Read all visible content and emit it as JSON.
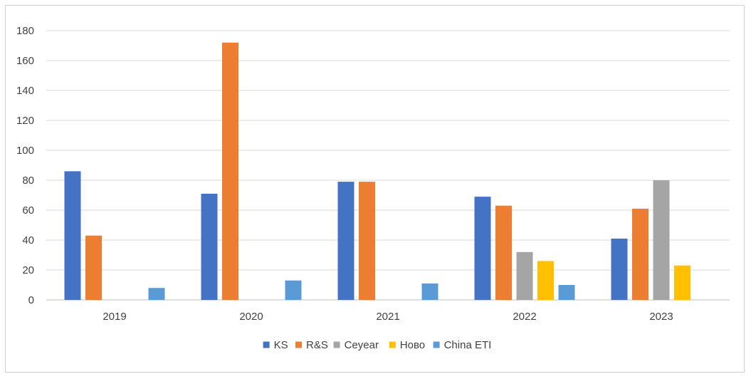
{
  "chart_data": {
    "type": "bar",
    "title": "",
    "xlabel": "",
    "ylabel": "",
    "ylim": [
      0,
      180
    ],
    "yticks": [
      0,
      20,
      40,
      60,
      80,
      100,
      120,
      140,
      160,
      180
    ],
    "grid": true,
    "legend_position": "bottom",
    "categories": [
      "2019",
      "2020",
      "2021",
      "2022",
      "2023"
    ],
    "series": [
      {
        "name": "KS",
        "color": "#4472C4",
        "values": [
          86,
          71,
          79,
          69,
          41
        ]
      },
      {
        "name": "R&S",
        "color": "#ED7D31",
        "values": [
          43,
          172,
          79,
          63,
          61
        ]
      },
      {
        "name": "Ceyear",
        "color": "#A5A5A5",
        "values": [
          0,
          0,
          0,
          32,
          80
        ]
      },
      {
        "name": "Ново",
        "color": "#FFC000",
        "values": [
          0,
          0,
          0,
          26,
          23
        ]
      },
      {
        "name": "China ETI",
        "color": "#5B9BD5",
        "values": [
          8,
          13,
          11,
          10,
          0
        ]
      }
    ]
  }
}
